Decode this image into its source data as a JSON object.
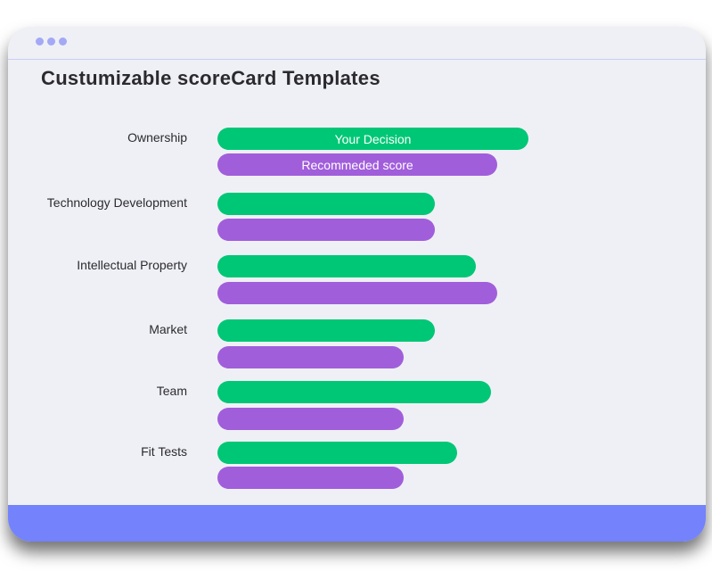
{
  "title": "Custumizable scoreCard Templates",
  "legend": {
    "decision": "Your Decision",
    "recommended": "Recommeded score"
  },
  "colors": {
    "decision": "#00c776",
    "recommended": "#a15edb",
    "footer": "#7482fb",
    "dots": "#a4a9f5"
  },
  "chart_data": {
    "type": "bar",
    "orientation": "horizontal",
    "categories": [
      "Ownership",
      "Technology Development",
      "Intellectual Property",
      "Market",
      "Team",
      "Fit Tests"
    ],
    "series": [
      {
        "name": "Your Decision",
        "values": [
          10,
          7,
          8.3,
          7,
          8.8,
          7.7
        ]
      },
      {
        "name": "Recommeded score",
        "values": [
          9,
          7,
          9,
          6,
          6,
          6
        ]
      }
    ],
    "xlim": [
      0,
      10
    ]
  }
}
